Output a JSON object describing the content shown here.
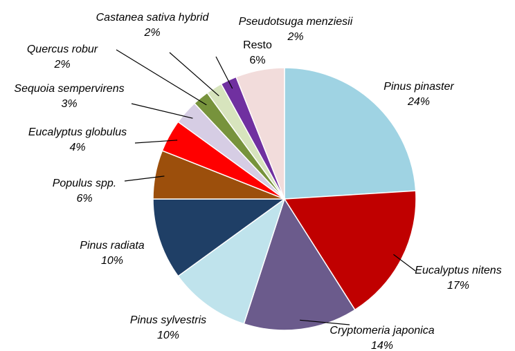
{
  "chart_data": {
    "type": "pie",
    "categories": [
      "Pinus pinaster",
      "Eucalyptus nitens",
      "Cryptomeria japonica",
      "Pinus sylvestris",
      "Pinus radiata",
      "Populus spp.",
      "Eucalyptus globulus",
      "Sequoia sempervirens",
      "Quercus robur",
      "Castanea sativa hybrid",
      "Pseudotsuga menziesii",
      "Resto"
    ],
    "values": [
      24,
      17,
      14,
      10,
      10,
      6,
      4,
      3,
      2,
      2,
      2,
      6
    ],
    "value_labels": [
      "24%",
      "17%",
      "14%",
      "10%",
      "10%",
      "6%",
      "4%",
      "3%",
      "2%",
      "2%",
      "2%",
      "6%"
    ],
    "colors": [
      "#9fd3e3",
      "#c00000",
      "#6b5b8c",
      "#bfe3ec",
      "#1f3f66",
      "#9c4f0c",
      "#ff0000",
      "#d6cde4",
      "#77933c",
      "#d7e4bd",
      "#7030a0",
      "#f2dcdb"
    ]
  }
}
